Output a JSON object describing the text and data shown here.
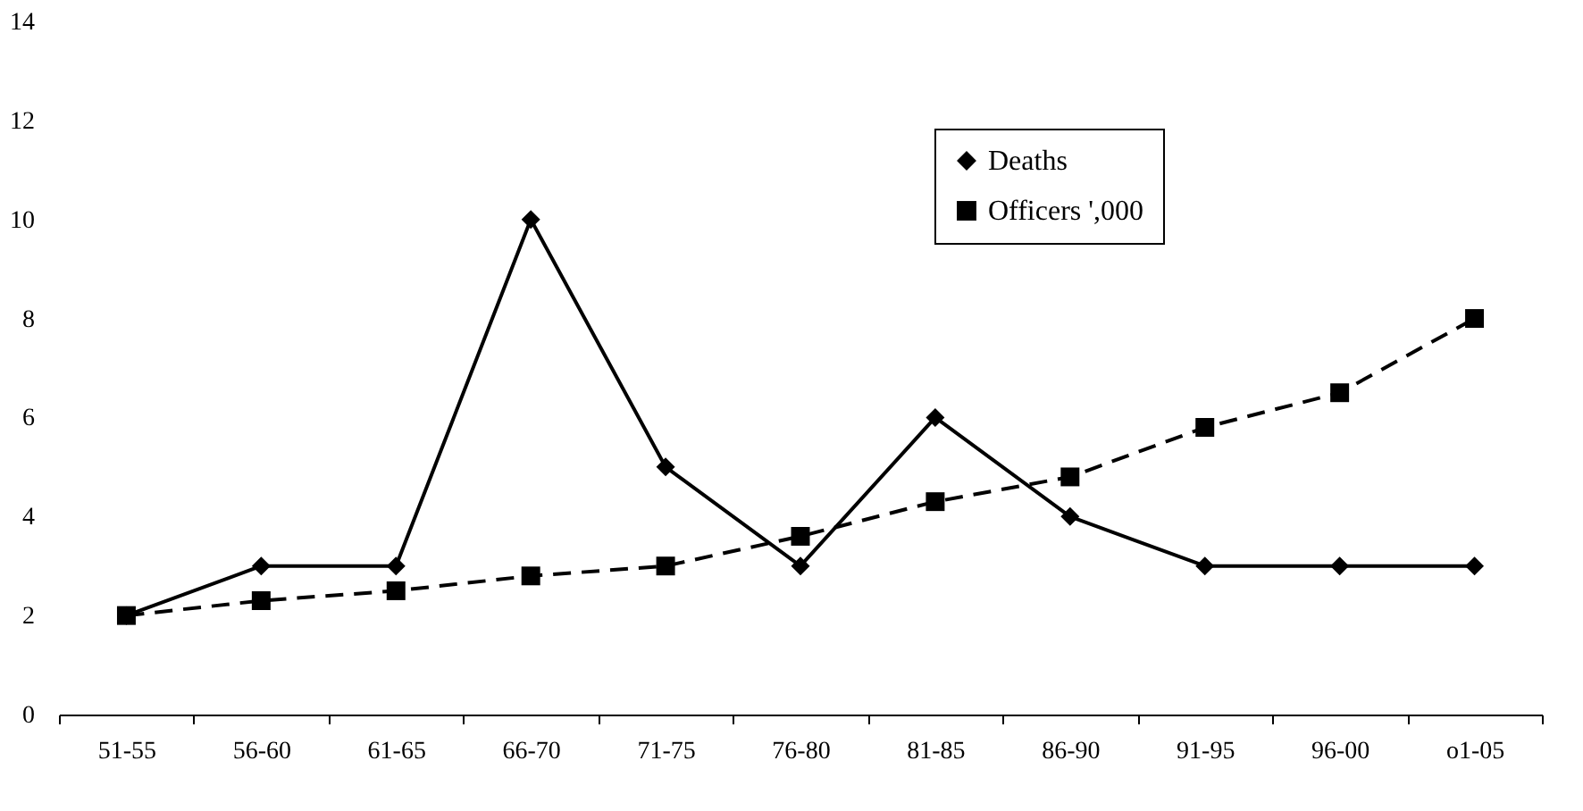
{
  "chart_data": {
    "type": "line",
    "categories": [
      "51-55",
      "56-60",
      "61-65",
      "66-70",
      "71-75",
      "76-80",
      "81-85",
      "86-90",
      "91-95",
      "96-00",
      "o1-05"
    ],
    "series": [
      {
        "name": "Deaths",
        "color": "#000000",
        "marker": "diamond",
        "line_style": "solid",
        "values": [
          2,
          3,
          3,
          10,
          5,
          3,
          6,
          4,
          3,
          3,
          3
        ]
      },
      {
        "name": "Officers ',000",
        "color": "#000000",
        "marker": "square",
        "line_style": "dashed",
        "values": [
          2,
          2.3,
          2.5,
          2.8,
          3,
          3.6,
          4.3,
          4.8,
          5.8,
          6.5,
          8
        ]
      }
    ],
    "ylim": [
      0,
      14
    ],
    "yticks": [
      0,
      2,
      4,
      6,
      8,
      10,
      12,
      14
    ],
    "grid": false,
    "legend": "top right"
  }
}
